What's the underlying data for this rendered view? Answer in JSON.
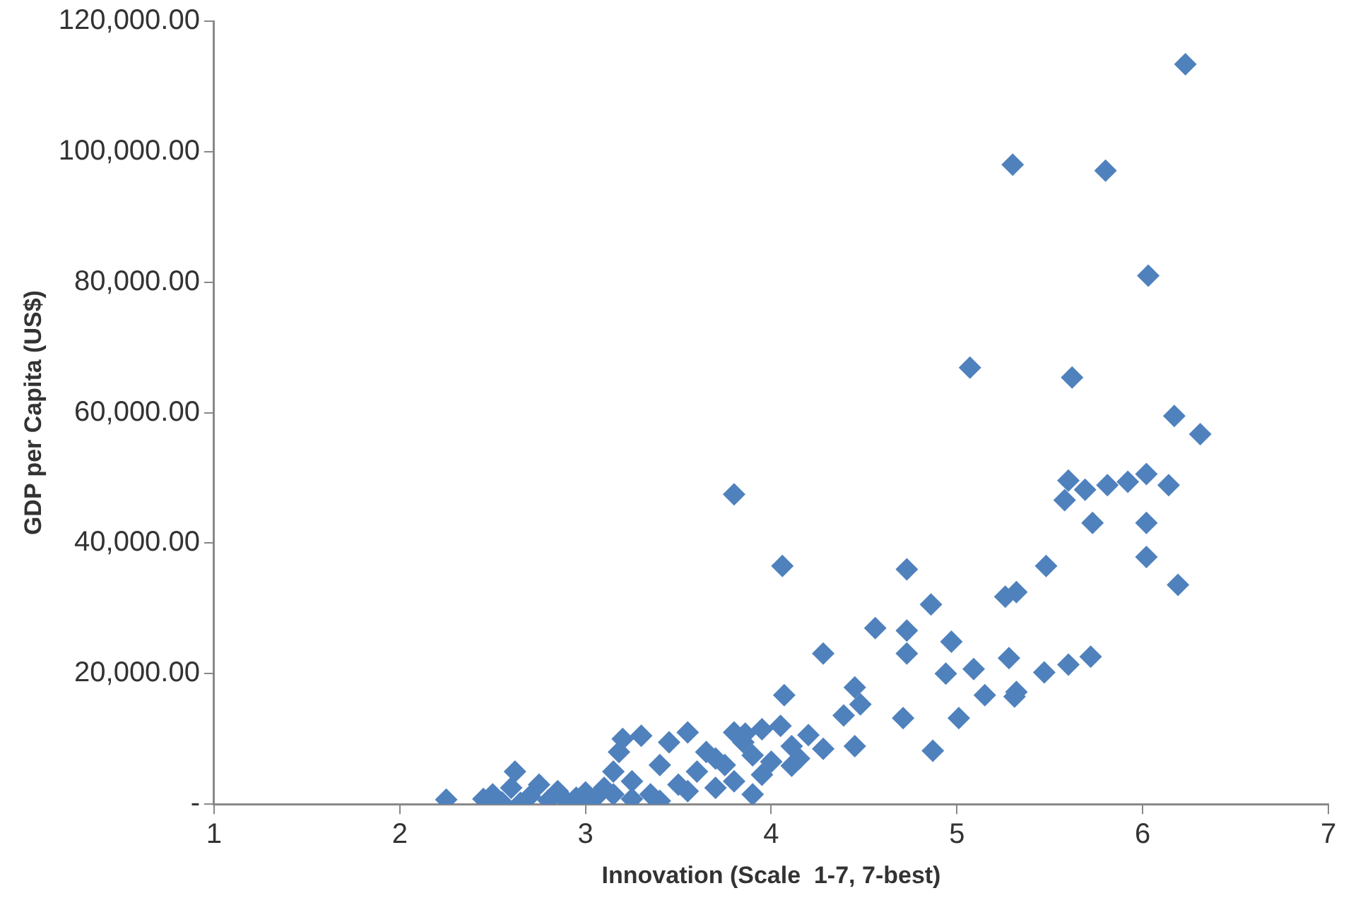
{
  "chart_data": {
    "type": "scatter",
    "xlabel": "Innovation (Scale  1-7, 7-best)",
    "ylabel": "GDP per Capita (US$)",
    "xlim": [
      1,
      7
    ],
    "xticks": [
      1,
      2,
      3,
      4,
      5,
      6,
      7
    ],
    "ylim": [
      0,
      120000
    ],
    "yticks": [
      {
        "value": 0,
        "label": "-"
      },
      {
        "value": 20000,
        "label": "20,000.00"
      },
      {
        "value": 40000,
        "label": "40,000.00"
      },
      {
        "value": 60000,
        "label": "60,000.00"
      },
      {
        "value": 80000,
        "label": "80,000.00"
      },
      {
        "value": 100000,
        "label": "100,000.00"
      },
      {
        "value": 120000,
        "label": "120,000.00"
      }
    ],
    "grid": false,
    "legend": false,
    "marker": "diamond",
    "series": [
      {
        "color": "#4f81bd",
        "x": [
          6.23,
          5.3,
          5.8,
          6.03,
          5.07,
          5.62,
          6.17,
          6.31,
          5.6,
          5.69,
          5.81,
          5.92,
          6.02,
          6.14,
          5.58,
          5.73,
          6.02,
          6.02,
          6.19,
          4.73,
          5.48,
          5.26,
          5.32,
          4.86,
          4.56,
          4.73,
          4.97,
          4.73,
          5.28,
          5.09,
          5.47,
          5.6,
          5.72,
          4.94,
          5.15,
          5.32,
          3.8,
          4.06,
          4.28,
          4.07,
          4.45,
          4.48,
          4.39,
          4.71,
          5.01,
          5.31,
          4.87,
          4.28,
          4.2,
          4.45,
          3.86,
          4.11,
          4.11,
          2.25,
          2.45,
          2.5,
          2.55,
          2.6,
          2.62,
          2.7,
          2.75,
          2.8,
          2.85,
          2.9,
          2.95,
          3.0,
          3.05,
          3.1,
          3.15,
          3.18,
          3.2,
          3.25,
          3.3,
          3.35,
          3.4,
          3.45,
          3.5,
          3.55,
          3.6,
          3.65,
          3.7,
          3.75,
          3.8,
          3.85,
          3.9,
          3.95,
          3.25,
          3.4,
          3.55,
          3.7,
          3.8,
          3.9,
          3.95,
          4.0,
          4.05,
          4.15,
          3.15,
          2.65,
          3.0
        ],
        "values": [
          113400,
          98000,
          97100,
          81000,
          66900,
          65400,
          59500,
          56700,
          49600,
          48200,
          48900,
          49400,
          50600,
          48900,
          46600,
          43100,
          43100,
          37900,
          33600,
          36000,
          36500,
          31800,
          32500,
          30600,
          27000,
          26600,
          24900,
          23100,
          22400,
          20700,
          20200,
          21400,
          22600,
          20000,
          16700,
          17200,
          47500,
          36500,
          23100,
          16700,
          17900,
          15300,
          13600,
          13200,
          13200,
          16500,
          8200,
          8500,
          10600,
          8900,
          10800,
          8900,
          5900,
          700,
          800,
          1500,
          300,
          2500,
          5000,
          1200,
          3000,
          600,
          2000,
          400,
          1000,
          1800,
          900,
          2500,
          5000,
          8000,
          10000,
          3500,
          10500,
          1500,
          6000,
          9500,
          3000,
          11000,
          5000,
          8000,
          2500,
          6000,
          3500,
          9500,
          1500,
          4500,
          800,
          500,
          2000,
          7000,
          11000,
          7500,
          11500,
          6500,
          12000,
          7000,
          1500,
          200,
          400
        ]
      }
    ]
  }
}
